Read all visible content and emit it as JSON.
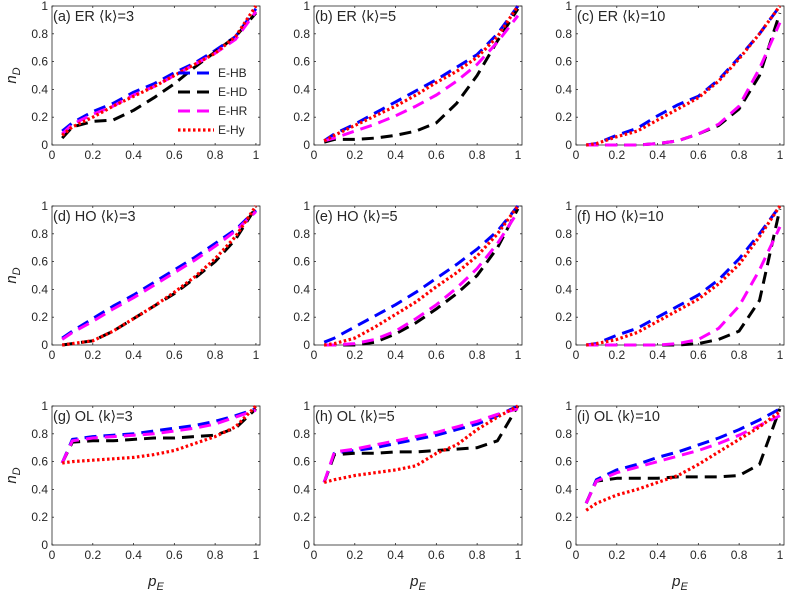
{
  "chart_data": {
    "type": "line",
    "series_styles": [
      {
        "name": "E-HB",
        "color": "#0000ff",
        "dash": "12,7"
      },
      {
        "name": "E-HD",
        "color": "#000000",
        "dash": "12,7"
      },
      {
        "name": "E-HR",
        "color": "#ff00ff",
        "dash": "12,7"
      },
      {
        "name": "E-Hy",
        "color": "#ff0000",
        "dash": "2.5,2.5"
      }
    ],
    "x": [
      0.05,
      0.1,
      0.2,
      0.3,
      0.4,
      0.5,
      0.6,
      0.7,
      0.8,
      0.9,
      1.0
    ],
    "xlabel": "p",
    "xlabel_sub": "E",
    "ylabel": "n",
    "ylabel_sub": "D",
    "xlim": [
      0,
      1.02
    ],
    "ylim": [
      0,
      1
    ],
    "xticks": [
      "0",
      "0.2",
      "0.4",
      "0.6",
      "0.8",
      "1"
    ],
    "yticks": [
      "0",
      "0.2",
      "0.4",
      "0.6",
      "0.8",
      "1"
    ],
    "panels": [
      {
        "title": "(a) ER ⟨k⟩=3",
        "series": [
          {
            "name": "E-HB",
            "values": [
              0.1,
              0.16,
              0.24,
              0.3,
              0.38,
              0.44,
              0.52,
              0.59,
              0.68,
              0.78,
              0.98
            ]
          },
          {
            "name": "E-HD",
            "values": [
              0.05,
              0.13,
              0.17,
              0.18,
              0.25,
              0.34,
              0.44,
              0.56,
              0.67,
              0.78,
              0.95
            ]
          },
          {
            "name": "E-HR",
            "values": [
              0.08,
              0.15,
              0.22,
              0.28,
              0.36,
              0.42,
              0.5,
              0.58,
              0.66,
              0.76,
              0.96
            ]
          },
          {
            "name": "E-Hy",
            "values": [
              0.07,
              0.13,
              0.2,
              0.28,
              0.35,
              0.42,
              0.5,
              0.58,
              0.66,
              0.78,
              1.0
            ]
          }
        ]
      },
      {
        "title": "(b) ER ⟨k⟩=5",
        "series": [
          {
            "name": "E-HB",
            "values": [
              0.03,
              0.08,
              0.15,
              0.23,
              0.31,
              0.39,
              0.47,
              0.56,
              0.65,
              0.8,
              1.0
            ]
          },
          {
            "name": "E-HD",
            "values": [
              0.02,
              0.04,
              0.04,
              0.05,
              0.07,
              0.1,
              0.16,
              0.3,
              0.5,
              0.75,
              0.98
            ]
          },
          {
            "name": "E-HR",
            "values": [
              0.03,
              0.05,
              0.1,
              0.15,
              0.21,
              0.28,
              0.36,
              0.46,
              0.58,
              0.74,
              0.93
            ]
          },
          {
            "name": "E-Hy",
            "values": [
              0.03,
              0.07,
              0.14,
              0.21,
              0.28,
              0.36,
              0.45,
              0.53,
              0.63,
              0.78,
              1.0
            ]
          }
        ]
      },
      {
        "title": "(c) ER ⟨k⟩=10",
        "series": [
          {
            "name": "E-HB",
            "values": [
              0.0,
              0.01,
              0.07,
              0.12,
              0.21,
              0.29,
              0.35,
              0.47,
              0.63,
              0.8,
              1.0
            ]
          },
          {
            "name": "E-HD",
            "values": [
              0.0,
              0.0,
              0.0,
              0.0,
              0.01,
              0.03,
              0.08,
              0.14,
              0.26,
              0.5,
              0.95
            ]
          },
          {
            "name": "E-HR",
            "values": [
              0.0,
              0.0,
              0.0,
              0.0,
              0.01,
              0.03,
              0.08,
              0.15,
              0.28,
              0.55,
              0.88
            ]
          },
          {
            "name": "E-Hy",
            "values": [
              0.0,
              0.01,
              0.06,
              0.1,
              0.18,
              0.26,
              0.34,
              0.46,
              0.62,
              0.8,
              1.0
            ]
          }
        ]
      },
      {
        "title": "(d) HO ⟨k⟩=3",
        "series": [
          {
            "name": "E-HB",
            "values": [
              0.05,
              0.1,
              0.19,
              0.28,
              0.36,
              0.45,
              0.54,
              0.63,
              0.73,
              0.83,
              0.97
            ]
          },
          {
            "name": "E-HD",
            "values": [
              0.0,
              0.01,
              0.03,
              0.1,
              0.19,
              0.28,
              0.37,
              0.48,
              0.6,
              0.76,
              0.99
            ]
          },
          {
            "name": "E-HR",
            "values": [
              0.04,
              0.09,
              0.17,
              0.26,
              0.34,
              0.43,
              0.52,
              0.61,
              0.71,
              0.82,
              0.96
            ]
          },
          {
            "name": "E-Hy",
            "values": [
              0.0,
              0.01,
              0.03,
              0.1,
              0.19,
              0.28,
              0.38,
              0.49,
              0.62,
              0.78,
              1.0
            ]
          }
        ]
      },
      {
        "title": "(e) HO ⟨k⟩=5",
        "series": [
          {
            "name": "E-HB",
            "values": [
              0.02,
              0.05,
              0.13,
              0.21,
              0.29,
              0.38,
              0.48,
              0.58,
              0.69,
              0.82,
              1.0
            ]
          },
          {
            "name": "E-HD",
            "values": [
              0.0,
              0.0,
              0.0,
              0.02,
              0.08,
              0.16,
              0.26,
              0.37,
              0.5,
              0.7,
              0.98
            ]
          },
          {
            "name": "E-HR",
            "values": [
              0.0,
              0.0,
              0.01,
              0.04,
              0.1,
              0.19,
              0.29,
              0.41,
              0.55,
              0.73,
              0.96
            ]
          },
          {
            "name": "E-Hy",
            "values": [
              0.0,
              0.01,
              0.05,
              0.13,
              0.22,
              0.31,
              0.42,
              0.52,
              0.64,
              0.8,
              1.0
            ]
          }
        ]
      },
      {
        "title": "(f) HO ⟨k⟩=10",
        "series": [
          {
            "name": "E-HB",
            "values": [
              0.0,
              0.01,
              0.07,
              0.12,
              0.2,
              0.28,
              0.36,
              0.47,
              0.62,
              0.8,
              1.0
            ]
          },
          {
            "name": "E-HD",
            "values": [
              0.0,
              0.0,
              0.0,
              0.0,
              0.0,
              0.0,
              0.01,
              0.04,
              0.1,
              0.32,
              0.98
            ]
          },
          {
            "name": "E-HR",
            "values": [
              0.0,
              0.0,
              0.0,
              0.0,
              0.0,
              0.01,
              0.04,
              0.12,
              0.28,
              0.54,
              0.85
            ]
          },
          {
            "name": "E-Hy",
            "values": [
              0.0,
              0.01,
              0.04,
              0.09,
              0.17,
              0.25,
              0.33,
              0.44,
              0.58,
              0.78,
              1.0
            ]
          }
        ]
      },
      {
        "title": "(g) OL ⟨k⟩=3",
        "series": [
          {
            "name": "E-HB",
            "values": [
              0.59,
              0.76,
              0.78,
              0.79,
              0.8,
              0.82,
              0.84,
              0.86,
              0.89,
              0.93,
              0.98
            ]
          },
          {
            "name": "E-HD",
            "values": [
              0.59,
              0.74,
              0.75,
              0.75,
              0.76,
              0.77,
              0.77,
              0.78,
              0.79,
              0.84,
              0.98
            ]
          },
          {
            "name": "E-HR",
            "values": [
              0.59,
              0.75,
              0.77,
              0.78,
              0.79,
              0.8,
              0.82,
              0.84,
              0.87,
              0.92,
              0.97
            ]
          },
          {
            "name": "E-Hy",
            "values": [
              0.59,
              0.6,
              0.61,
              0.62,
              0.63,
              0.65,
              0.68,
              0.73,
              0.78,
              0.85,
              1.0
            ]
          }
        ]
      },
      {
        "title": "(h) OL ⟨k⟩=5",
        "series": [
          {
            "name": "E-HB",
            "values": [
              0.45,
              0.66,
              0.68,
              0.7,
              0.73,
              0.76,
              0.79,
              0.83,
              0.87,
              0.93,
              1.0
            ]
          },
          {
            "name": "E-HD",
            "values": [
              0.45,
              0.65,
              0.66,
              0.66,
              0.67,
              0.67,
              0.68,
              0.69,
              0.7,
              0.75,
              1.0
            ]
          },
          {
            "name": "E-HR",
            "values": [
              0.45,
              0.67,
              0.69,
              0.72,
              0.75,
              0.78,
              0.81,
              0.85,
              0.89,
              0.94,
              0.98
            ]
          },
          {
            "name": "E-Hy",
            "values": [
              0.45,
              0.47,
              0.5,
              0.52,
              0.54,
              0.57,
              0.66,
              0.72,
              0.83,
              0.92,
              1.0
            ]
          }
        ]
      },
      {
        "title": "(i) OL ⟨k⟩=10",
        "series": [
          {
            "name": "E-HB",
            "values": [
              0.3,
              0.47,
              0.54,
              0.58,
              0.63,
              0.67,
              0.72,
              0.77,
              0.83,
              0.9,
              0.98
            ]
          },
          {
            "name": "E-HD",
            "values": [
              0.3,
              0.46,
              0.48,
              0.48,
              0.48,
              0.49,
              0.49,
              0.49,
              0.5,
              0.58,
              0.98
            ]
          },
          {
            "name": "E-HR",
            "values": [
              0.3,
              0.46,
              0.52,
              0.56,
              0.6,
              0.64,
              0.68,
              0.73,
              0.79,
              0.86,
              0.93
            ]
          },
          {
            "name": "E-Hy",
            "values": [
              0.25,
              0.3,
              0.36,
              0.4,
              0.45,
              0.5,
              0.58,
              0.67,
              0.76,
              0.85,
              0.96
            ]
          }
        ]
      }
    ],
    "legend": {
      "panel": 0,
      "placement": "bottom-right",
      "entries": [
        "E-HB",
        "E-HD",
        "E-HR",
        "E-Hy"
      ]
    }
  }
}
